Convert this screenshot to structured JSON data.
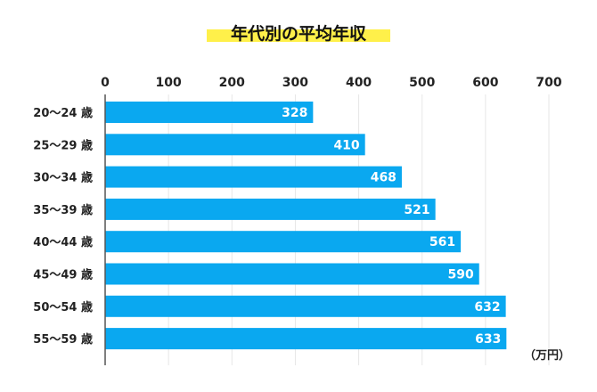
{
  "chart_data": {
    "type": "bar",
    "orientation": "horizontal",
    "title": "年代別の平均年収",
    "unit_label": "（万円）",
    "categories": [
      "20〜24 歳",
      "25〜29 歳",
      "30〜34 歳",
      "35〜39 歳",
      "40〜44 歳",
      "45〜49 歳",
      "50〜54 歳",
      "55〜59 歳"
    ],
    "values": [
      328,
      410,
      468,
      521,
      561,
      590,
      632,
      633
    ],
    "xlim": [
      0,
      700
    ],
    "x_ticks": [
      0,
      100,
      200,
      300,
      400,
      500,
      600,
      700
    ],
    "grid": true,
    "data_labels": true,
    "colors": {
      "bar": "#0aa8f0",
      "title_highlight": "#fff04a",
      "grid": "#e6e6e6",
      "axis": "#555555"
    }
  }
}
